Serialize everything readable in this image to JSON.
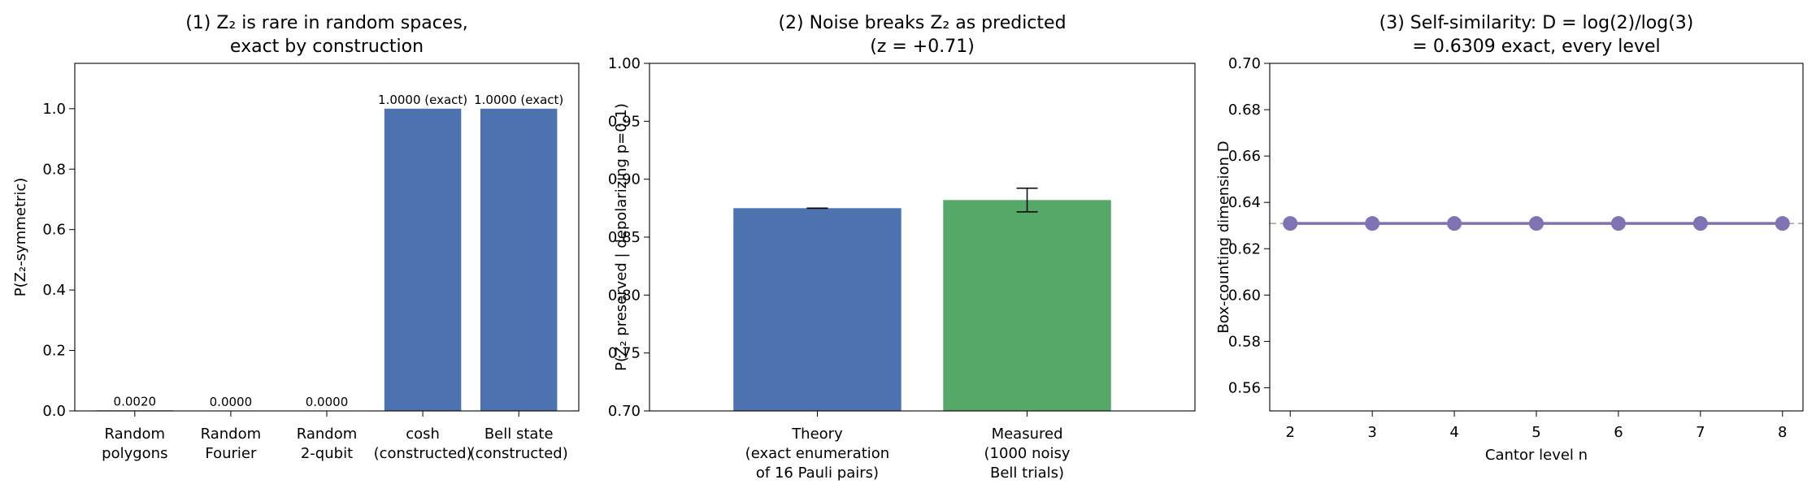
{
  "chart_data": [
    {
      "type": "bar",
      "title_lines": [
        "(1) Z₂ is rare in random spaces,",
        "exact by construction"
      ],
      "ylabel": "P(Z₂-symmetric)",
      "ylim": [
        0,
        1.15
      ],
      "yticks": [
        0.0,
        0.2,
        0.4,
        0.6,
        0.8,
        1.0
      ],
      "ytick_labels": [
        "0.0",
        "0.2",
        "0.4",
        "0.6",
        "0.8",
        "1.0"
      ],
      "categories": [
        [
          "Random",
          "polygons"
        ],
        [
          "Random",
          "Fourier"
        ],
        [
          "Random",
          "2-qubit"
        ],
        [
          "cosh",
          "(constructed)"
        ],
        [
          "Bell state",
          "(constructed)"
        ]
      ],
      "values": [
        0.002,
        0.0,
        0.0,
        1.0,
        1.0
      ],
      "data_labels": [
        "0.0020",
        "0.0000",
        "0.0000",
        "1.0000 (exact)",
        "1.0000 (exact)"
      ],
      "bar_color": "#4c72b0",
      "grid": false
    },
    {
      "type": "bar",
      "title_lines": [
        "(2) Noise breaks Z₂ as predicted",
        "(z = +0.71)"
      ],
      "ylabel": "P(Z₂ preserved | depolarizing p=0.1)",
      "ylim": [
        0.7,
        1.0
      ],
      "yticks": [
        0.7,
        0.75,
        0.8,
        0.85,
        0.9,
        0.95,
        1.0
      ],
      "ytick_labels": [
        "0.70",
        "0.75",
        "0.80",
        "0.85",
        "0.90",
        "0.95",
        "1.00"
      ],
      "categories": [
        [
          "Theory",
          "(exact enumeration",
          "of 16 Pauli pairs)"
        ],
        [
          "Measured",
          "(1000 noisy",
          "Bell trials)"
        ]
      ],
      "values": [
        0.875,
        0.882
      ],
      "errors": [
        0.0,
        0.0102
      ],
      "colors": [
        "#4c72b0",
        "#55a868"
      ],
      "grid": false
    },
    {
      "type": "line",
      "title_lines": [
        "(3) Self-similarity: D = log(2)/log(3)",
        "= 0.6309 exact, every level"
      ],
      "xlabel": "Cantor level n",
      "ylabel": "Box-counting dimension D",
      "xlim": [
        1.75,
        8.25
      ],
      "ylim": [
        0.55,
        0.7
      ],
      "xticks": [
        2,
        3,
        4,
        5,
        6,
        7,
        8
      ],
      "yticks": [
        0.56,
        0.58,
        0.6,
        0.62,
        0.64,
        0.66,
        0.68,
        0.7
      ],
      "ytick_labels": [
        "0.56",
        "0.58",
        "0.60",
        "0.62",
        "0.64",
        "0.66",
        "0.68",
        "0.70"
      ],
      "x": [
        2,
        3,
        4,
        5,
        6,
        7,
        8
      ],
      "y": [
        0.6309,
        0.6309,
        0.6309,
        0.6309,
        0.6309,
        0.6309,
        0.6309
      ],
      "reference_line": 0.6309,
      "line_color": "#8172b3",
      "reference_color": "#aaaaaa",
      "grid": false
    }
  ]
}
